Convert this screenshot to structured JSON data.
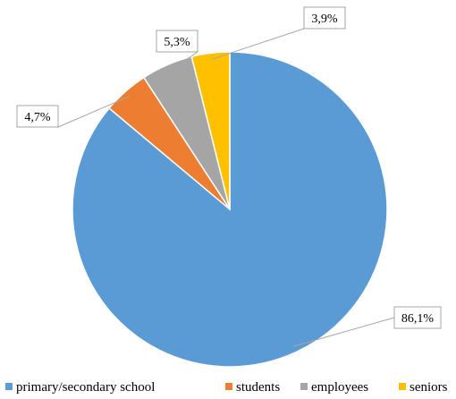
{
  "chart_data": {
    "type": "pie",
    "title": "",
    "legend_position": "bottom",
    "series": [
      {
        "name": "primary/secondary school",
        "value": 86.1,
        "label": "86,1%",
        "color": "#5b9bd5"
      },
      {
        "name": "students",
        "value": 4.7,
        "label": "4,7%",
        "color": "#ed7d31"
      },
      {
        "name": "employees",
        "value": 5.3,
        "label": "5,3%",
        "color": "#a5a5a5"
      },
      {
        "name": "seniors",
        "value": 3.9,
        "label": "3,9%",
        "color": "#ffc000"
      }
    ]
  }
}
